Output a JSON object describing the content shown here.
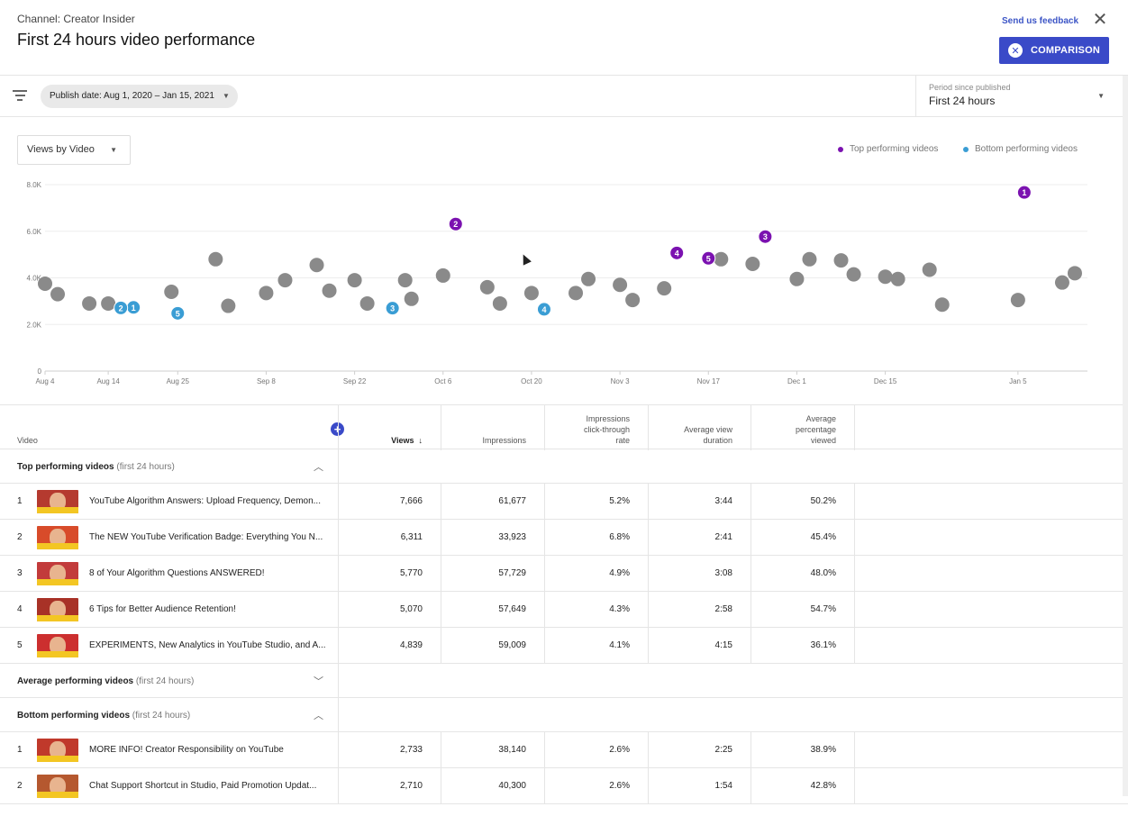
{
  "header": {
    "channel": "Channel: Creator Insider",
    "title": "First 24 hours video performance",
    "feedback": "Send us feedback",
    "comparison_label": "COMPARISON"
  },
  "filter": {
    "chip": "Publish date: Aug 1, 2020 – Jan 15, 2021",
    "period_label": "Period since published",
    "period_value": "First 24 hours"
  },
  "chart_controls": {
    "dropdown": "Views by Video",
    "legend_top": "Top performing videos",
    "legend_bottom": "Bottom performing videos"
  },
  "colors": {
    "top": "#7b12b0",
    "bottom": "#3a9dd4",
    "average": "#8a8a8a",
    "accent": "#3a4ac8"
  },
  "chart_data": {
    "type": "scatter",
    "y_ticks": [
      "0",
      "2.0K",
      "4.0K",
      "6.0K",
      "8.0K"
    ],
    "ylim": [
      0,
      8000
    ],
    "x_ticks": [
      "Aug 4",
      "Aug 14",
      "Aug 25",
      "Sep 8",
      "Sep 22",
      "Oct 6",
      "Oct 20",
      "Nov 3",
      "Nov 17",
      "Dec 1",
      "Dec 15",
      "Jan 5"
    ],
    "x_tick_dates": [
      "2020-08-04",
      "2020-08-14",
      "2020-08-25",
      "2020-09-08",
      "2020-09-22",
      "2020-10-06",
      "2020-10-20",
      "2020-11-03",
      "2020-11-17",
      "2020-12-01",
      "2020-12-15",
      "2021-01-05"
    ],
    "grid": true,
    "series": [
      {
        "name": "Top performing videos",
        "points": [
          {
            "date": "2021-01-06",
            "y": 7666,
            "label": "1"
          },
          {
            "date": "2020-10-08",
            "y": 6311,
            "label": "2"
          },
          {
            "date": "2020-11-26",
            "y": 5770,
            "label": "3"
          },
          {
            "date": "2020-11-12",
            "y": 5070,
            "label": "4"
          },
          {
            "date": "2020-11-17",
            "y": 4839,
            "label": "5"
          }
        ]
      },
      {
        "name": "Bottom performing videos",
        "points": [
          {
            "date": "2020-08-18",
            "y": 2733,
            "label": "1"
          },
          {
            "date": "2020-08-16",
            "y": 2710,
            "label": "2"
          },
          {
            "date": "2020-09-28",
            "y": 2700,
            "label": "3"
          },
          {
            "date": "2020-10-22",
            "y": 2650,
            "label": "4"
          },
          {
            "date": "2020-08-25",
            "y": 2480,
            "label": "5"
          }
        ]
      },
      {
        "points": [
          {
            "date": "2020-08-04",
            "y": 3750
          },
          {
            "date": "2020-08-06",
            "y": 3300
          },
          {
            "date": "2020-08-11",
            "y": 2900
          },
          {
            "date": "2020-08-14",
            "y": 2900
          },
          {
            "date": "2020-08-24",
            "y": 3400
          },
          {
            "date": "2020-08-31",
            "y": 4800
          },
          {
            "date": "2020-09-02",
            "y": 2800
          },
          {
            "date": "2020-09-08",
            "y": 3350
          },
          {
            "date": "2020-09-11",
            "y": 3900
          },
          {
            "date": "2020-09-16",
            "y": 4550
          },
          {
            "date": "2020-09-18",
            "y": 3450
          },
          {
            "date": "2020-09-22",
            "y": 3900
          },
          {
            "date": "2020-09-24",
            "y": 2900
          },
          {
            "date": "2020-09-30",
            "y": 3900
          },
          {
            "date": "2020-10-01",
            "y": 3100
          },
          {
            "date": "2020-10-06",
            "y": 4100
          },
          {
            "date": "2020-10-13",
            "y": 3600
          },
          {
            "date": "2020-10-15",
            "y": 2900
          },
          {
            "date": "2020-10-20",
            "y": 3350
          },
          {
            "date": "2020-10-27",
            "y": 3350
          },
          {
            "date": "2020-10-29",
            "y": 3950
          },
          {
            "date": "2020-11-03",
            "y": 3700
          },
          {
            "date": "2020-11-05",
            "y": 3050
          },
          {
            "date": "2020-11-10",
            "y": 3550
          },
          {
            "date": "2020-11-19",
            "y": 4800
          },
          {
            "date": "2020-11-24",
            "y": 4600
          },
          {
            "date": "2020-12-01",
            "y": 3950
          },
          {
            "date": "2020-12-03",
            "y": 4800
          },
          {
            "date": "2020-12-08",
            "y": 4750
          },
          {
            "date": "2020-12-10",
            "y": 4150
          },
          {
            "date": "2020-12-15",
            "y": 4050
          },
          {
            "date": "2020-12-17",
            "y": 3950
          },
          {
            "date": "2020-12-22",
            "y": 4350
          },
          {
            "date": "2020-12-24",
            "y": 2850
          },
          {
            "date": "2021-01-05",
            "y": 3050
          },
          {
            "date": "2021-01-12",
            "y": 3800
          },
          {
            "date": "2021-01-14",
            "y": 4200
          }
        ]
      }
    ]
  },
  "table": {
    "headers": {
      "video": "Video",
      "views": "Views",
      "impressions": "Impressions",
      "ctr_line1": "Impressions",
      "ctr_line2": "click-through",
      "ctr_line3": "rate",
      "avd_line1": "Average view",
      "avd_line2": "duration",
      "apv_line1": "Average",
      "apv_line2": "percentage",
      "apv_line3": "viewed"
    },
    "sections": {
      "top": {
        "title": "Top performing videos",
        "note": "(first 24 hours)"
      },
      "average": {
        "title": "Average performing videos",
        "note": "(first 24 hours)"
      },
      "bottom": {
        "title": "Bottom performing videos",
        "note": "(first 24 hours)"
      }
    },
    "top_rows": [
      {
        "rank": "1",
        "title": "YouTube Algorithm Answers: Upload Frequency, Demon...",
        "views": "7,666",
        "impressions": "61,677",
        "ctr": "5.2%",
        "avd": "3:44",
        "apv": "50.2%"
      },
      {
        "rank": "2",
        "title": "The NEW YouTube Verification Badge: Everything You N...",
        "views": "6,311",
        "impressions": "33,923",
        "ctr": "6.8%",
        "avd": "2:41",
        "apv": "45.4%"
      },
      {
        "rank": "3",
        "title": "8 of Your Algorithm Questions ANSWERED!",
        "views": "5,770",
        "impressions": "57,729",
        "ctr": "4.9%",
        "avd": "3:08",
        "apv": "48.0%"
      },
      {
        "rank": "4",
        "title": "6 Tips for Better Audience Retention!",
        "views": "5,070",
        "impressions": "57,649",
        "ctr": "4.3%",
        "avd": "2:58",
        "apv": "54.7%"
      },
      {
        "rank": "5",
        "title": "EXPERIMENTS, New Analytics in YouTube Studio, and A...",
        "views": "4,839",
        "impressions": "59,009",
        "ctr": "4.1%",
        "avd": "4:15",
        "apv": "36.1%"
      }
    ],
    "bottom_rows": [
      {
        "rank": "1",
        "title": "MORE INFO! Creator Responsibility on YouTube",
        "views": "2,733",
        "impressions": "38,140",
        "ctr": "2.6%",
        "avd": "2:25",
        "apv": "38.9%"
      },
      {
        "rank": "2",
        "title": "Chat Support Shortcut in Studio, Paid Promotion Updat...",
        "views": "2,710",
        "impressions": "40,300",
        "ctr": "2.6%",
        "avd": "1:54",
        "apv": "42.8%"
      }
    ]
  }
}
